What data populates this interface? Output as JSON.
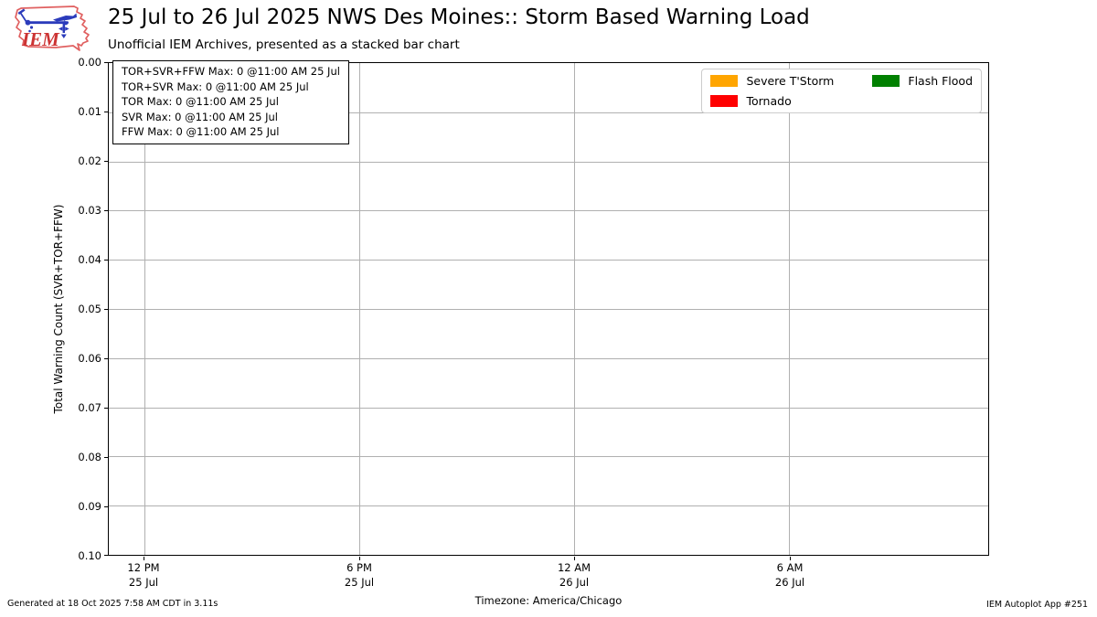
{
  "header": {
    "title": "25 Jul to 26 Jul 2025 NWS Des Moines:: Storm Based Warning Load",
    "subtitle": "Unofficial IEM Archives, presented as a stacked bar chart",
    "logo_text": "IEM"
  },
  "stats_box": {
    "lines": [
      "TOR+SVR+FFW Max: 0 @11:00 AM 25 Jul",
      "TOR+SVR Max: 0 @11:00 AM 25 Jul",
      "TOR Max: 0 @11:00 AM 25 Jul",
      "SVR Max: 0 @11:00 AM 25 Jul",
      "FFW Max: 0 @11:00 AM 25 Jul"
    ]
  },
  "legend": {
    "items": [
      {
        "label": "Severe T'Storm",
        "color": "#ffa500"
      },
      {
        "label": "Tornado",
        "color": "#ff0000"
      },
      {
        "label": "Flash Flood",
        "color": "#008000"
      }
    ]
  },
  "chart_data": {
    "type": "bar",
    "stacked": true,
    "title": "25 Jul to 26 Jul 2025 NWS Des Moines:: Storm Based Warning Load",
    "subtitle": "Unofficial IEM Archives, presented as a stacked bar chart",
    "xlabel": "",
    "ylabel": "Total Warning Count (SVR+TOR+FFW)",
    "y_axis_inverted": true,
    "ylim": [
      0.0,
      0.1
    ],
    "y_ticks": [
      "0.00",
      "0.01",
      "0.02",
      "0.03",
      "0.04",
      "0.05",
      "0.06",
      "0.07",
      "0.08",
      "0.09",
      "0.10"
    ],
    "x_ticks": [
      {
        "time": "12 PM",
        "date": "25 Jul",
        "pos": 0.0405
      },
      {
        "time": "6 PM",
        "date": "25 Jul",
        "pos": 0.2853
      },
      {
        "time": "12 AM",
        "date": "26 Jul",
        "pos": 0.529
      },
      {
        "time": "6 AM",
        "date": "26 Jul",
        "pos": 0.7738
      }
    ],
    "grid": true,
    "grid_color": "#b0b0b0",
    "legend_position": "upper right",
    "series": [
      {
        "name": "Severe T'Storm",
        "color": "#ffa500",
        "max": 0,
        "max_time": "11:00 AM 25 Jul"
      },
      {
        "name": "Tornado",
        "color": "#ff0000",
        "max": 0,
        "max_time": "11:00 AM 25 Jul"
      },
      {
        "name": "Flash Flood",
        "color": "#008000",
        "max": 0,
        "max_time": "11:00 AM 25 Jul"
      }
    ],
    "all_values_zero": true
  },
  "footer": {
    "generated": "Generated at 18 Oct 2025 7:58 AM CDT in 3.11s",
    "timezone": "Timezone: America/Chicago",
    "app": "IEM Autoplot App #251"
  }
}
